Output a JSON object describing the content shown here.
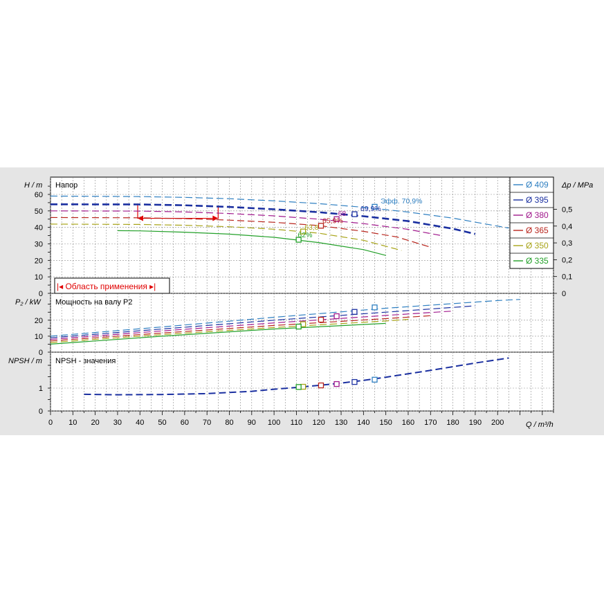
{
  "chart_data": [
    {
      "type": "line",
      "panel": "head",
      "title": "Напор",
      "ylabel": "H / m",
      "ylabel_right": "Δp / MPa",
      "xlim": [
        0,
        225
      ],
      "ylim": [
        0,
        65
      ],
      "y_ticks": [
        "0",
        "10",
        "20",
        "30",
        "40",
        "50",
        "60"
      ],
      "y_right_ticks": [
        "0",
        "0,1",
        "0,2",
        "0,3",
        "0,4",
        "0,5"
      ],
      "range_label": "Область применения",
      "series": [
        {
          "name": "Ø 409",
          "color": "#2e7fc1",
          "x": [
            0,
            40,
            60,
            80,
            100,
            120,
            140,
            160,
            180,
            200,
            205
          ],
          "y": [
            59,
            58.7,
            58.2,
            57.4,
            56.1,
            54.4,
            52.2,
            49.3,
            45.6,
            40.8,
            39.6
          ]
        },
        {
          "name": "Ø 395",
          "color": "#1a2fa0",
          "x": [
            0,
            40,
            60,
            80,
            100,
            120,
            140,
            160,
            180,
            190
          ],
          "y": [
            54,
            53.9,
            53.4,
            52.4,
            51,
            49.2,
            46.8,
            43.8,
            39.2,
            36
          ]
        },
        {
          "name": "Ø 380",
          "color": "#a0188c",
          "x": [
            0,
            40,
            60,
            80,
            100,
            120,
            140,
            160,
            175
          ],
          "y": [
            50,
            49.9,
            49.4,
            48.4,
            47,
            45,
            42.3,
            38.8,
            35
          ]
        },
        {
          "name": "Ø 365",
          "color": "#b8241c",
          "x": [
            0,
            40,
            60,
            80,
            100,
            120,
            140,
            155,
            170
          ],
          "y": [
            46,
            45.8,
            45.3,
            44.4,
            43.1,
            41.1,
            37.6,
            34.2,
            28
          ]
        },
        {
          "name": "Ø 350",
          "color": "#a8a418",
          "x": [
            0,
            40,
            60,
            80,
            100,
            120,
            140,
            157
          ],
          "y": [
            42,
            41.8,
            41.3,
            40.4,
            38.9,
            36.5,
            32.2,
            26
          ]
        },
        {
          "name": "Ø 335",
          "color": "#22a028",
          "x": [
            30,
            40,
            60,
            80,
            100,
            120,
            140,
            150
          ],
          "y": [
            38,
            37.9,
            37.1,
            35.9,
            34,
            30.8,
            26.5,
            23
          ]
        }
      ],
      "efficiency_labels": [
        "Эфф.  70,9%",
        "69,9%",
        "68",
        "65,9%",
        "63,8",
        "62%"
      ],
      "duty_points": {
        "x": [
          145,
          136,
          128,
          121,
          113,
          111
        ],
        "y": [
          52.5,
          48,
          45,
          41,
          37.5,
          32.5
        ]
      }
    },
    {
      "type": "line",
      "panel": "power",
      "title": "Мощность на валу P2",
      "ylabel": "P₂ / kW",
      "ylim": [
        0,
        35
      ],
      "y_ticks": [
        "0",
        "10",
        "20"
      ],
      "series": [
        {
          "name": "Ø 409",
          "x": [
            0,
            50,
            100,
            150,
            200,
            210
          ],
          "y": [
            10,
            15.8,
            21.8,
            27.5,
            32.3,
            33
          ]
        },
        {
          "name": "Ø 395",
          "x": [
            0,
            50,
            100,
            150,
            190
          ],
          "y": [
            9,
            14.5,
            20,
            25,
            29
          ]
        },
        {
          "name": "Ø 380",
          "x": [
            0,
            50,
            100,
            150,
            180
          ],
          "y": [
            8,
            13.3,
            18.3,
            23,
            25.7
          ]
        },
        {
          "name": "Ø 365",
          "x": [
            0,
            50,
            100,
            150,
            170
          ],
          "y": [
            7,
            12,
            16.7,
            21,
            22.8
          ]
        },
        {
          "name": "Ø 350",
          "x": [
            0,
            50,
            100,
            150,
            160
          ],
          "y": [
            6,
            11,
            15.4,
            19.5,
            20.5
          ]
        },
        {
          "name": "Ø 335",
          "x": [
            0,
            50,
            100,
            150
          ],
          "y": [
            5,
            10,
            14.5,
            18
          ]
        }
      ],
      "duty_points": {
        "x": [
          145,
          136,
          128,
          121,
          113,
          111
        ],
        "y": [
          28,
          25.2,
          22.5,
          20.3,
          17.5,
          16
        ]
      }
    },
    {
      "type": "line",
      "panel": "npsh",
      "title": "NPSH - значения",
      "ylabel": "NPSH / m",
      "xlabel": "Q / m³/h",
      "xlim": [
        0,
        225
      ],
      "x_ticks": [
        "0",
        "10",
        "20",
        "30",
        "40",
        "50",
        "60",
        "70",
        "80",
        "90",
        "100",
        "110",
        "120",
        "130",
        "140",
        "150",
        "160",
        "170",
        "180",
        "190",
        "200"
      ],
      "ylim": [
        0,
        2.2
      ],
      "y_ticks": [
        "0",
        "1"
      ],
      "series": [
        {
          "name": "NPSH",
          "x": [
            15,
            30,
            50,
            70,
            90,
            100,
            110,
            120,
            130,
            140,
            150,
            170,
            190,
            205
          ],
          "y": [
            0.73,
            0.71,
            0.72,
            0.76,
            0.86,
            0.95,
            1.03,
            1.12,
            1.22,
            1.34,
            1.48,
            1.78,
            2.1,
            2.32
          ]
        }
      ],
      "duty_points": {
        "x": [
          145,
          136,
          128,
          121,
          113,
          111
        ],
        "y": [
          1.37,
          1.27,
          1.18,
          1.12,
          1.06,
          1.05
        ]
      }
    }
  ],
  "legend_items": [
    "Ø 409",
    "Ø 395",
    "Ø 380",
    "Ø 365",
    "Ø 350",
    "Ø 335"
  ]
}
